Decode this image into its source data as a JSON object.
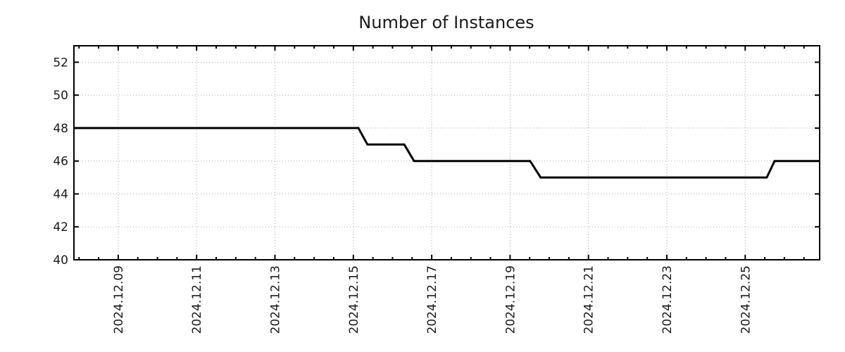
{
  "chart": {
    "title": "Number of Instances"
  },
  "chart_data": {
    "type": "line",
    "title": "Number of Instances",
    "xlabel": "",
    "ylabel": "",
    "grid": true,
    "legend": "none",
    "x_axis": {
      "unit": "date (2024, December, fractional day)",
      "min": 7.87,
      "max": 26.9,
      "tick_positions": [
        9,
        11,
        13,
        15,
        17,
        19,
        21,
        23,
        25
      ],
      "tick_labels": [
        "2024.12.09",
        "2024.12.11",
        "2024.12.13",
        "2024.12.15",
        "2024.12.17",
        "2024.12.19",
        "2024.12.21",
        "2024.12.23",
        "2024.12.25"
      ],
      "minor_tick_step": 0.5
    },
    "y_axis": {
      "min": 40,
      "max": 53,
      "tick_positions": [
        40,
        42,
        44,
        46,
        48,
        50,
        52
      ],
      "tick_labels": [
        "40",
        "42",
        "44",
        "46",
        "48",
        "50",
        "52"
      ]
    },
    "series": [
      {
        "name": "instances",
        "color": "#000000",
        "line_width": 3,
        "points": [
          [
            7.87,
            48
          ],
          [
            15.13,
            48
          ],
          [
            15.36,
            47
          ],
          [
            16.3,
            47
          ],
          [
            16.55,
            46
          ],
          [
            19.51,
            46
          ],
          [
            19.78,
            45
          ],
          [
            25.55,
            45
          ],
          [
            25.75,
            46
          ],
          [
            26.9,
            46
          ]
        ]
      }
    ],
    "colors": {
      "line": "#000000",
      "grid": "#a8a8a8",
      "axis": "#000000",
      "text": "#1a1a1a",
      "background": "#ffffff"
    }
  }
}
